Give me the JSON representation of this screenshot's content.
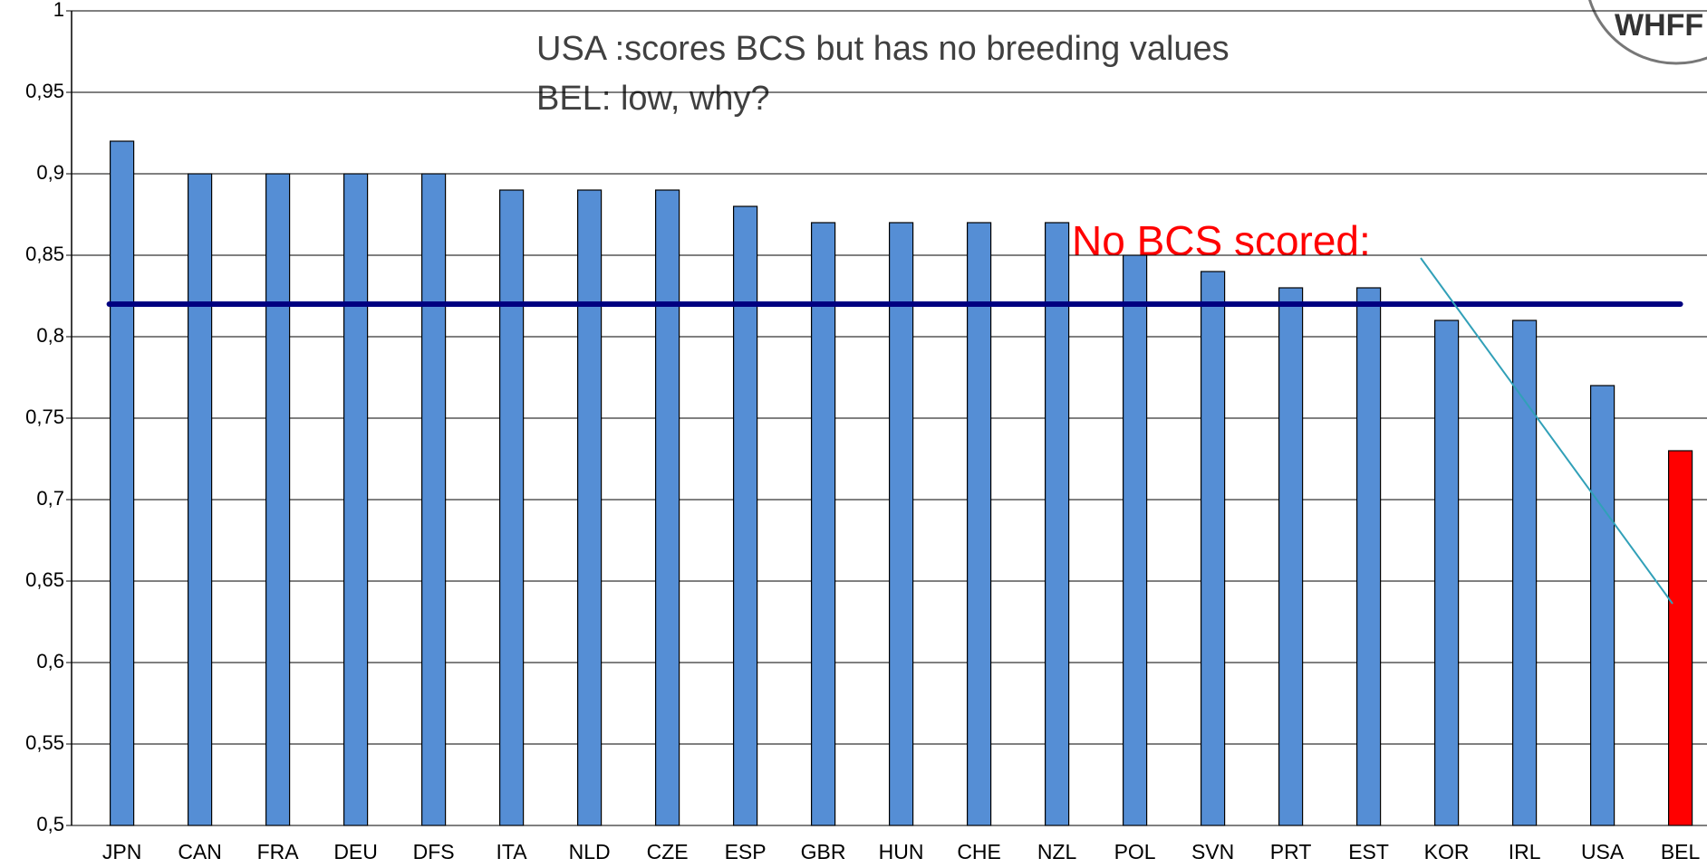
{
  "chart_data": {
    "type": "bar",
    "categories": [
      "JPN",
      "CAN",
      "FRA",
      "DEU",
      "DFS",
      "ITA",
      "NLD",
      "CZE",
      "ESP",
      "GBR",
      "HUN",
      "CHE",
      "NZL",
      "POL",
      "SVN",
      "PRT",
      "EST",
      "KOR",
      "IRL",
      "USA",
      "BEL"
    ],
    "values": [
      0.92,
      0.9,
      0.9,
      0.9,
      0.9,
      0.89,
      0.89,
      0.89,
      0.88,
      0.87,
      0.87,
      0.87,
      0.87,
      0.85,
      0.84,
      0.83,
      0.83,
      0.81,
      0.81,
      0.77,
      0.73
    ],
    "colors": [
      "#558ed5",
      "#558ed5",
      "#558ed5",
      "#558ed5",
      "#558ed5",
      "#558ed5",
      "#558ed5",
      "#558ed5",
      "#558ed5",
      "#558ed5",
      "#558ed5",
      "#558ed5",
      "#558ed5",
      "#558ed5",
      "#558ed5",
      "#558ed5",
      "#558ed5",
      "#558ed5",
      "#558ed5",
      "#558ed5",
      "#ff0000"
    ],
    "ylim": [
      0.5,
      1
    ],
    "yticks": [
      {
        "value": 0.5,
        "label": "0,5"
      },
      {
        "value": 0.55,
        "label": "0,55"
      },
      {
        "value": 0.6,
        "label": "0,6"
      },
      {
        "value": 0.65,
        "label": "0,65"
      },
      {
        "value": 0.7,
        "label": "0,7"
      },
      {
        "value": 0.75,
        "label": "0,75"
      },
      {
        "value": 0.8,
        "label": "0,8"
      },
      {
        "value": 0.85,
        "label": "0,85"
      },
      {
        "value": 0.9,
        "label": "0,9"
      },
      {
        "value": 0.95,
        "label": "0,95"
      },
      1
    ],
    "grid": true,
    "reference_line": {
      "value": 0.82,
      "color": "#000080"
    },
    "annotations": [
      "USA :scores BCS but has no breeding values",
      "BEL: low, why?",
      "No BCS scored:"
    ],
    "logo": "WHFF"
  }
}
